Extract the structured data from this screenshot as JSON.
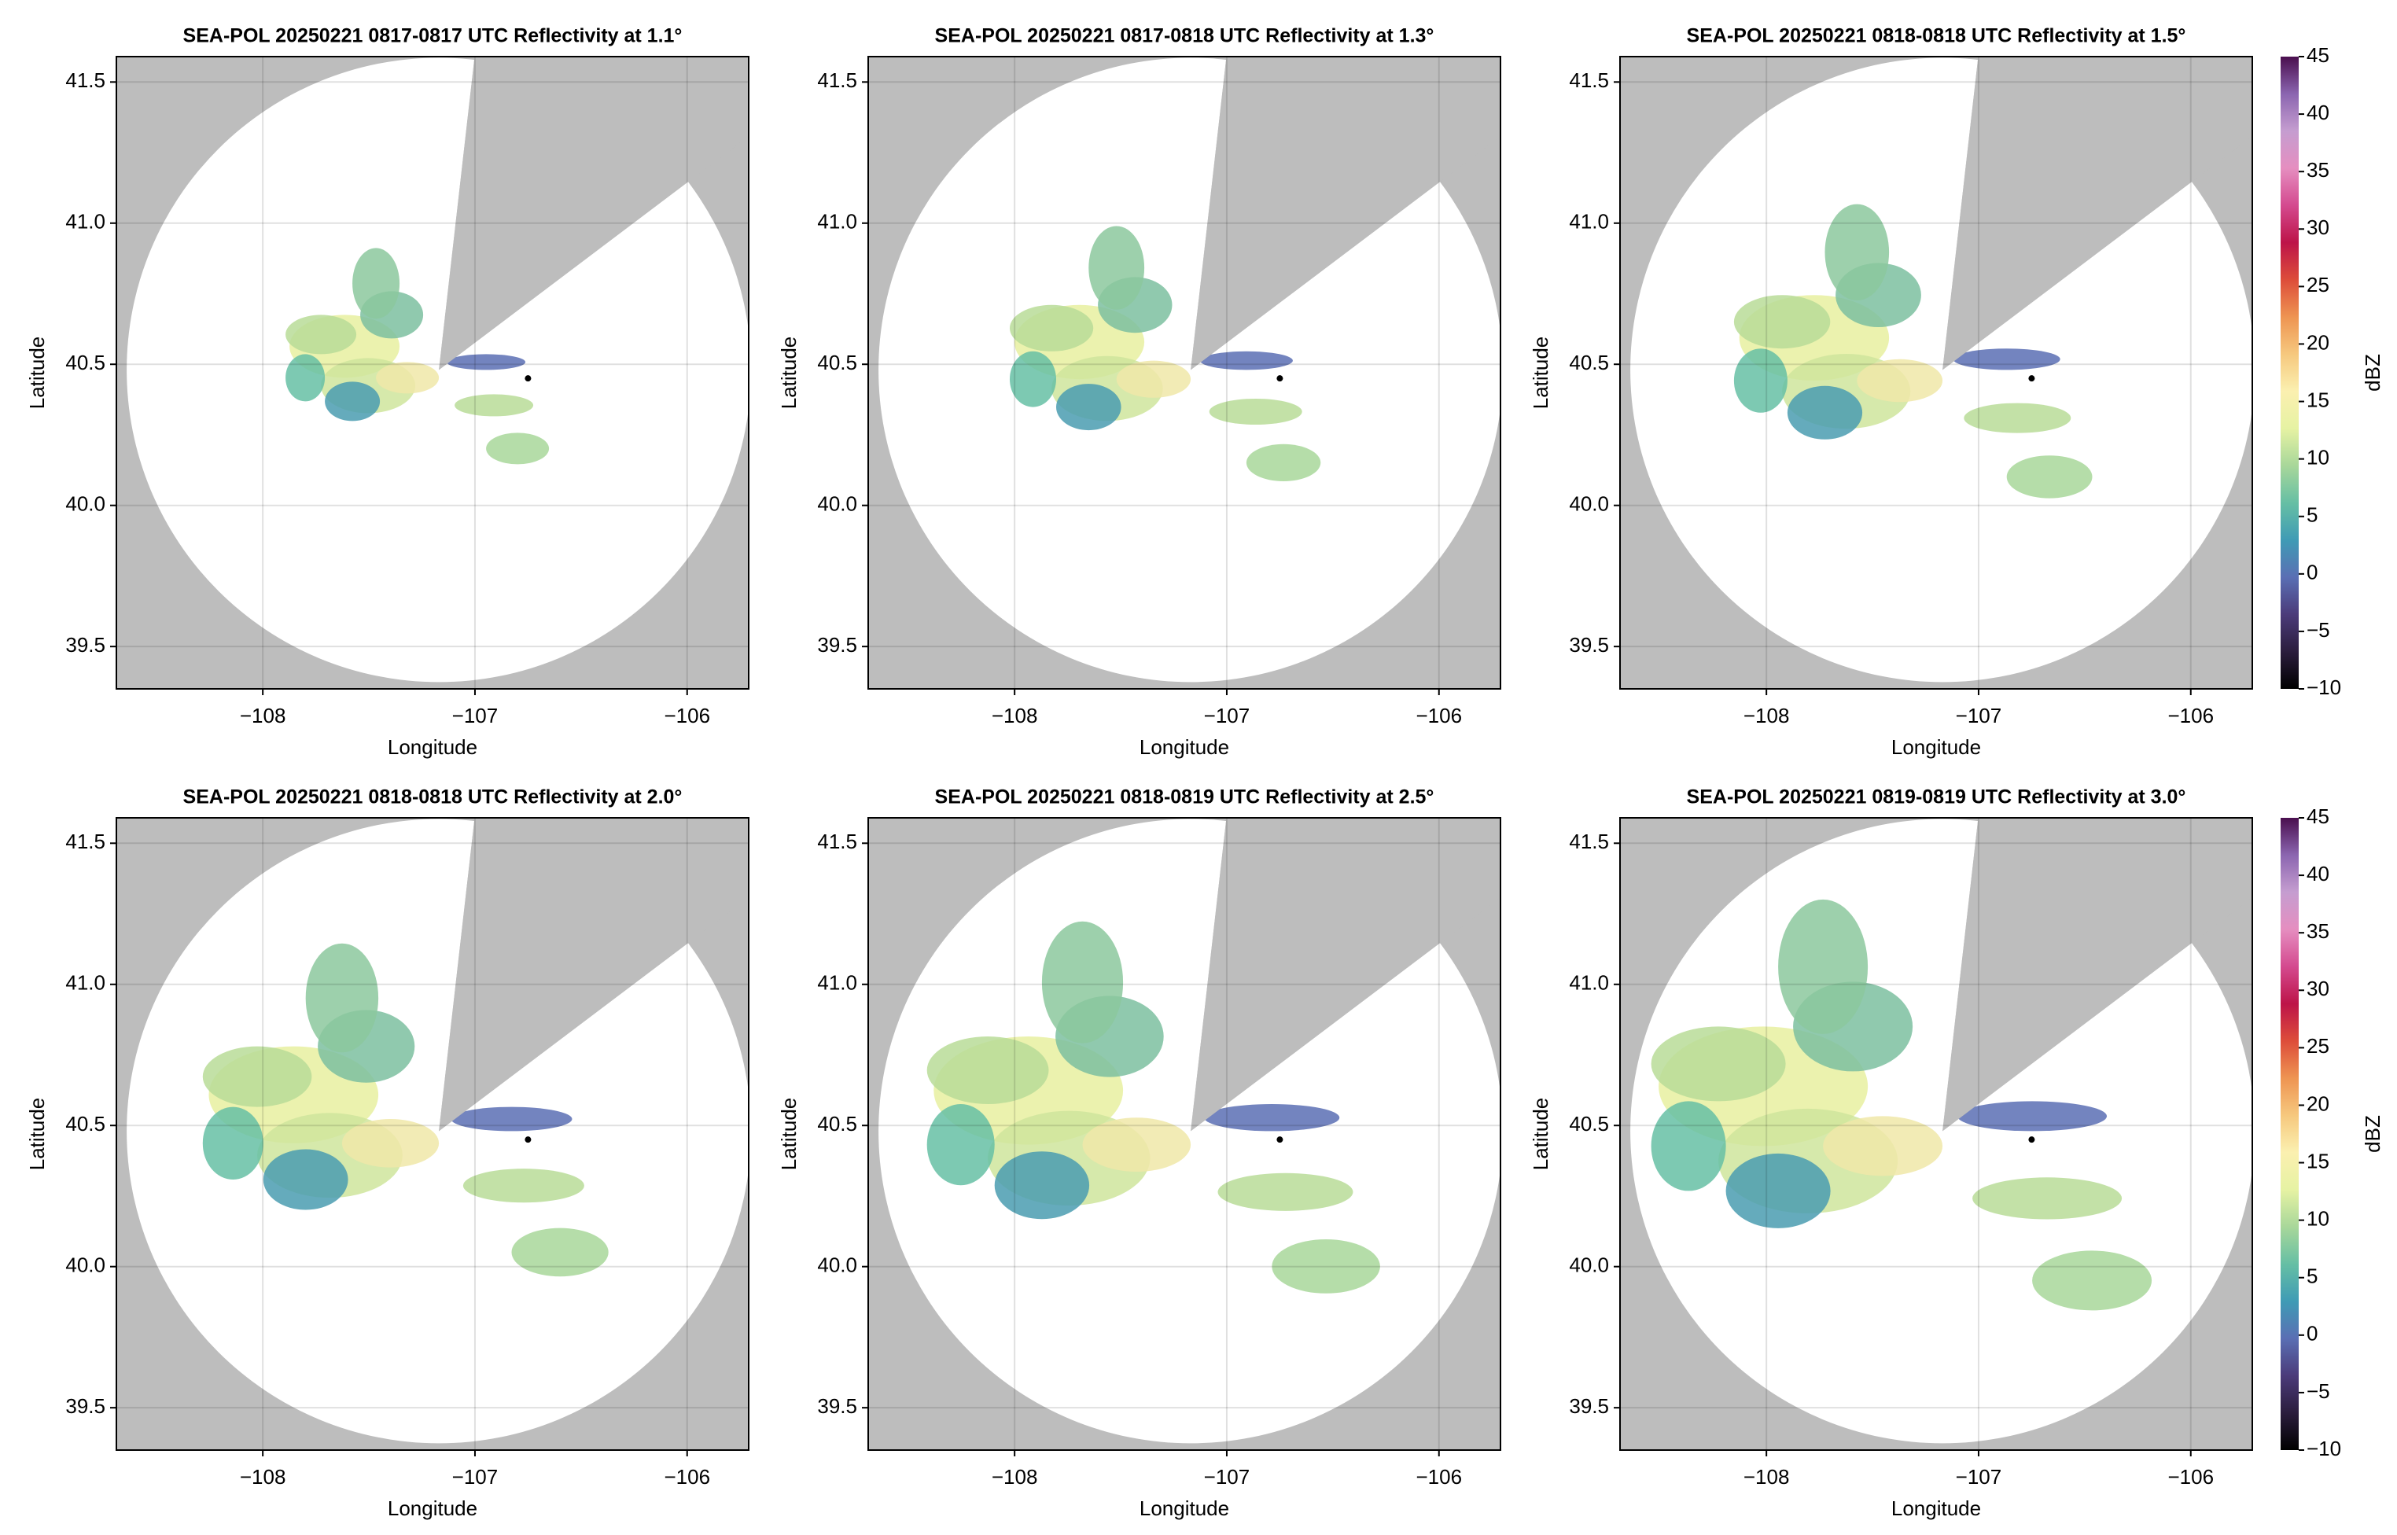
{
  "chart_data": [
    {
      "type": "ppi",
      "title": "SEA-POL 20250221 0817-0817 UTC Reflectivity at 1.1°",
      "xlabel": "Longitude",
      "ylabel": "Latitude",
      "xlim": [
        -108.69,
        -105.71
      ],
      "ylim": [
        39.35,
        41.59
      ],
      "xticks": [
        {
          "value": -108,
          "label": "−108"
        },
        {
          "value": -107,
          "label": "−107"
        },
        {
          "value": -106,
          "label": "−106"
        }
      ],
      "yticks": [
        39.5,
        {
          "value": 40,
          "label": "40.0"
        },
        40.5,
        {
          "value": 41,
          "label": "41.0"
        },
        41.5
      ],
      "site": {
        "lon": -107.17,
        "lat": 40.48
      },
      "marker": {
        "lon": -106.75,
        "lat": 40.45
      },
      "grid": true
    },
    {
      "type": "ppi",
      "title": "SEA-POL 20250221 0817-0818 UTC Reflectivity at 1.3°",
      "xlabel": "Longitude",
      "ylabel": "Latitude",
      "xlim": [
        -108.69,
        -105.71
      ],
      "ylim": [
        39.35,
        41.59
      ],
      "xticks": [
        {
          "value": -108,
          "label": "−108"
        },
        {
          "value": -107,
          "label": "−107"
        },
        {
          "value": -106,
          "label": "−106"
        }
      ],
      "yticks": [
        39.5,
        {
          "value": 40,
          "label": "40.0"
        },
        40.5,
        {
          "value": 41,
          "label": "41.0"
        },
        41.5
      ],
      "site": {
        "lon": -107.17,
        "lat": 40.48
      },
      "marker": {
        "lon": -106.75,
        "lat": 40.45
      },
      "grid": true
    },
    {
      "type": "ppi",
      "title": "SEA-POL 20250221 0818-0818 UTC Reflectivity at 1.5°",
      "xlabel": "Longitude",
      "ylabel": "Latitude",
      "xlim": [
        -108.69,
        -105.71
      ],
      "ylim": [
        39.35,
        41.59
      ],
      "xticks": [
        {
          "value": -108,
          "label": "−108"
        },
        {
          "value": -107,
          "label": "−107"
        },
        {
          "value": -106,
          "label": "−106"
        }
      ],
      "yticks": [
        39.5,
        {
          "value": 40,
          "label": "40.0"
        },
        40.5,
        {
          "value": 41,
          "label": "41.0"
        },
        41.5
      ],
      "site": {
        "lon": -107.17,
        "lat": 40.48
      },
      "marker": {
        "lon": -106.75,
        "lat": 40.45
      },
      "grid": true,
      "colorbar": {
        "label": "dBZ",
        "lim": [
          -10,
          45
        ],
        "ticks": [
          {
            "value": -10,
            "label": "−10"
          },
          {
            "value": -5,
            "label": "−5"
          },
          0,
          5,
          10,
          15,
          20,
          25,
          30,
          35,
          40,
          45
        ],
        "colors": [
          "#000000",
          "#2b1d3d",
          "#4b3b7a",
          "#5a6fb4",
          "#3f9bb5",
          "#66bfa4",
          "#a8d79a",
          "#e6f2a3",
          "#fbf0b0",
          "#f6c87e",
          "#ee9452",
          "#dd4d3a",
          "#bd1449",
          "#d44a8f",
          "#e58ec0",
          "#c59dd0",
          "#8b65b0",
          "#4a0f4f"
        ]
      }
    },
    {
      "type": "ppi",
      "title": "SEA-POL 20250221 0818-0818 UTC Reflectivity at 2.0°",
      "xlabel": "Longitude",
      "ylabel": "Latitude",
      "xlim": [
        -108.69,
        -105.71
      ],
      "ylim": [
        39.35,
        41.59
      ],
      "xticks": [
        {
          "value": -108,
          "label": "−108"
        },
        {
          "value": -107,
          "label": "−107"
        },
        {
          "value": -106,
          "label": "−106"
        }
      ],
      "yticks": [
        39.5,
        {
          "value": 40,
          "label": "40.0"
        },
        40.5,
        {
          "value": 41,
          "label": "41.0"
        },
        41.5
      ],
      "site": {
        "lon": -107.17,
        "lat": 40.48
      },
      "marker": {
        "lon": -106.75,
        "lat": 40.45
      },
      "grid": true
    },
    {
      "type": "ppi",
      "title": "SEA-POL 20250221 0818-0819 UTC Reflectivity at 2.5°",
      "xlabel": "Longitude",
      "ylabel": "Latitude",
      "xlim": [
        -108.69,
        -105.71
      ],
      "ylim": [
        39.35,
        41.59
      ],
      "xticks": [
        {
          "value": -108,
          "label": "−108"
        },
        {
          "value": -107,
          "label": "−107"
        },
        {
          "value": -106,
          "label": "−106"
        }
      ],
      "yticks": [
        39.5,
        {
          "value": 40,
          "label": "40.0"
        },
        40.5,
        {
          "value": 41,
          "label": "41.0"
        },
        41.5
      ],
      "site": {
        "lon": -107.17,
        "lat": 40.48
      },
      "marker": {
        "lon": -106.75,
        "lat": 40.45
      },
      "grid": true
    },
    {
      "type": "ppi",
      "title": "SEA-POL 20250221 0819-0819 UTC Reflectivity at 3.0°",
      "xlabel": "Longitude",
      "ylabel": "Latitude",
      "xlim": [
        -108.69,
        -105.71
      ],
      "ylim": [
        39.35,
        41.59
      ],
      "xticks": [
        {
          "value": -108,
          "label": "−108"
        },
        {
          "value": -107,
          "label": "−107"
        },
        {
          "value": -106,
          "label": "−106"
        }
      ],
      "yticks": [
        39.5,
        {
          "value": 40,
          "label": "40.0"
        },
        40.5,
        {
          "value": 41,
          "label": "41.0"
        },
        41.5
      ],
      "site": {
        "lon": -107.17,
        "lat": 40.48
      },
      "marker": {
        "lon": -106.75,
        "lat": 40.45
      },
      "grid": true,
      "colorbar": {
        "label": "dBZ",
        "lim": [
          -10,
          45
        ],
        "ticks": [
          {
            "value": -10,
            "label": "−10"
          },
          {
            "value": -5,
            "label": "−5"
          },
          0,
          5,
          10,
          15,
          20,
          25,
          30,
          35,
          40,
          45
        ],
        "colors": [
          "#000000",
          "#2b1d3d",
          "#4b3b7a",
          "#5a6fb4",
          "#3f9bb5",
          "#66bfa4",
          "#a8d79a",
          "#e6f2a3",
          "#fbf0b0",
          "#f6c87e",
          "#ee9452",
          "#dd4d3a",
          "#bd1449",
          "#d44a8f",
          "#e58ec0",
          "#c59dd0",
          "#8b65b0",
          "#4a0f4f"
        ]
      }
    }
  ]
}
